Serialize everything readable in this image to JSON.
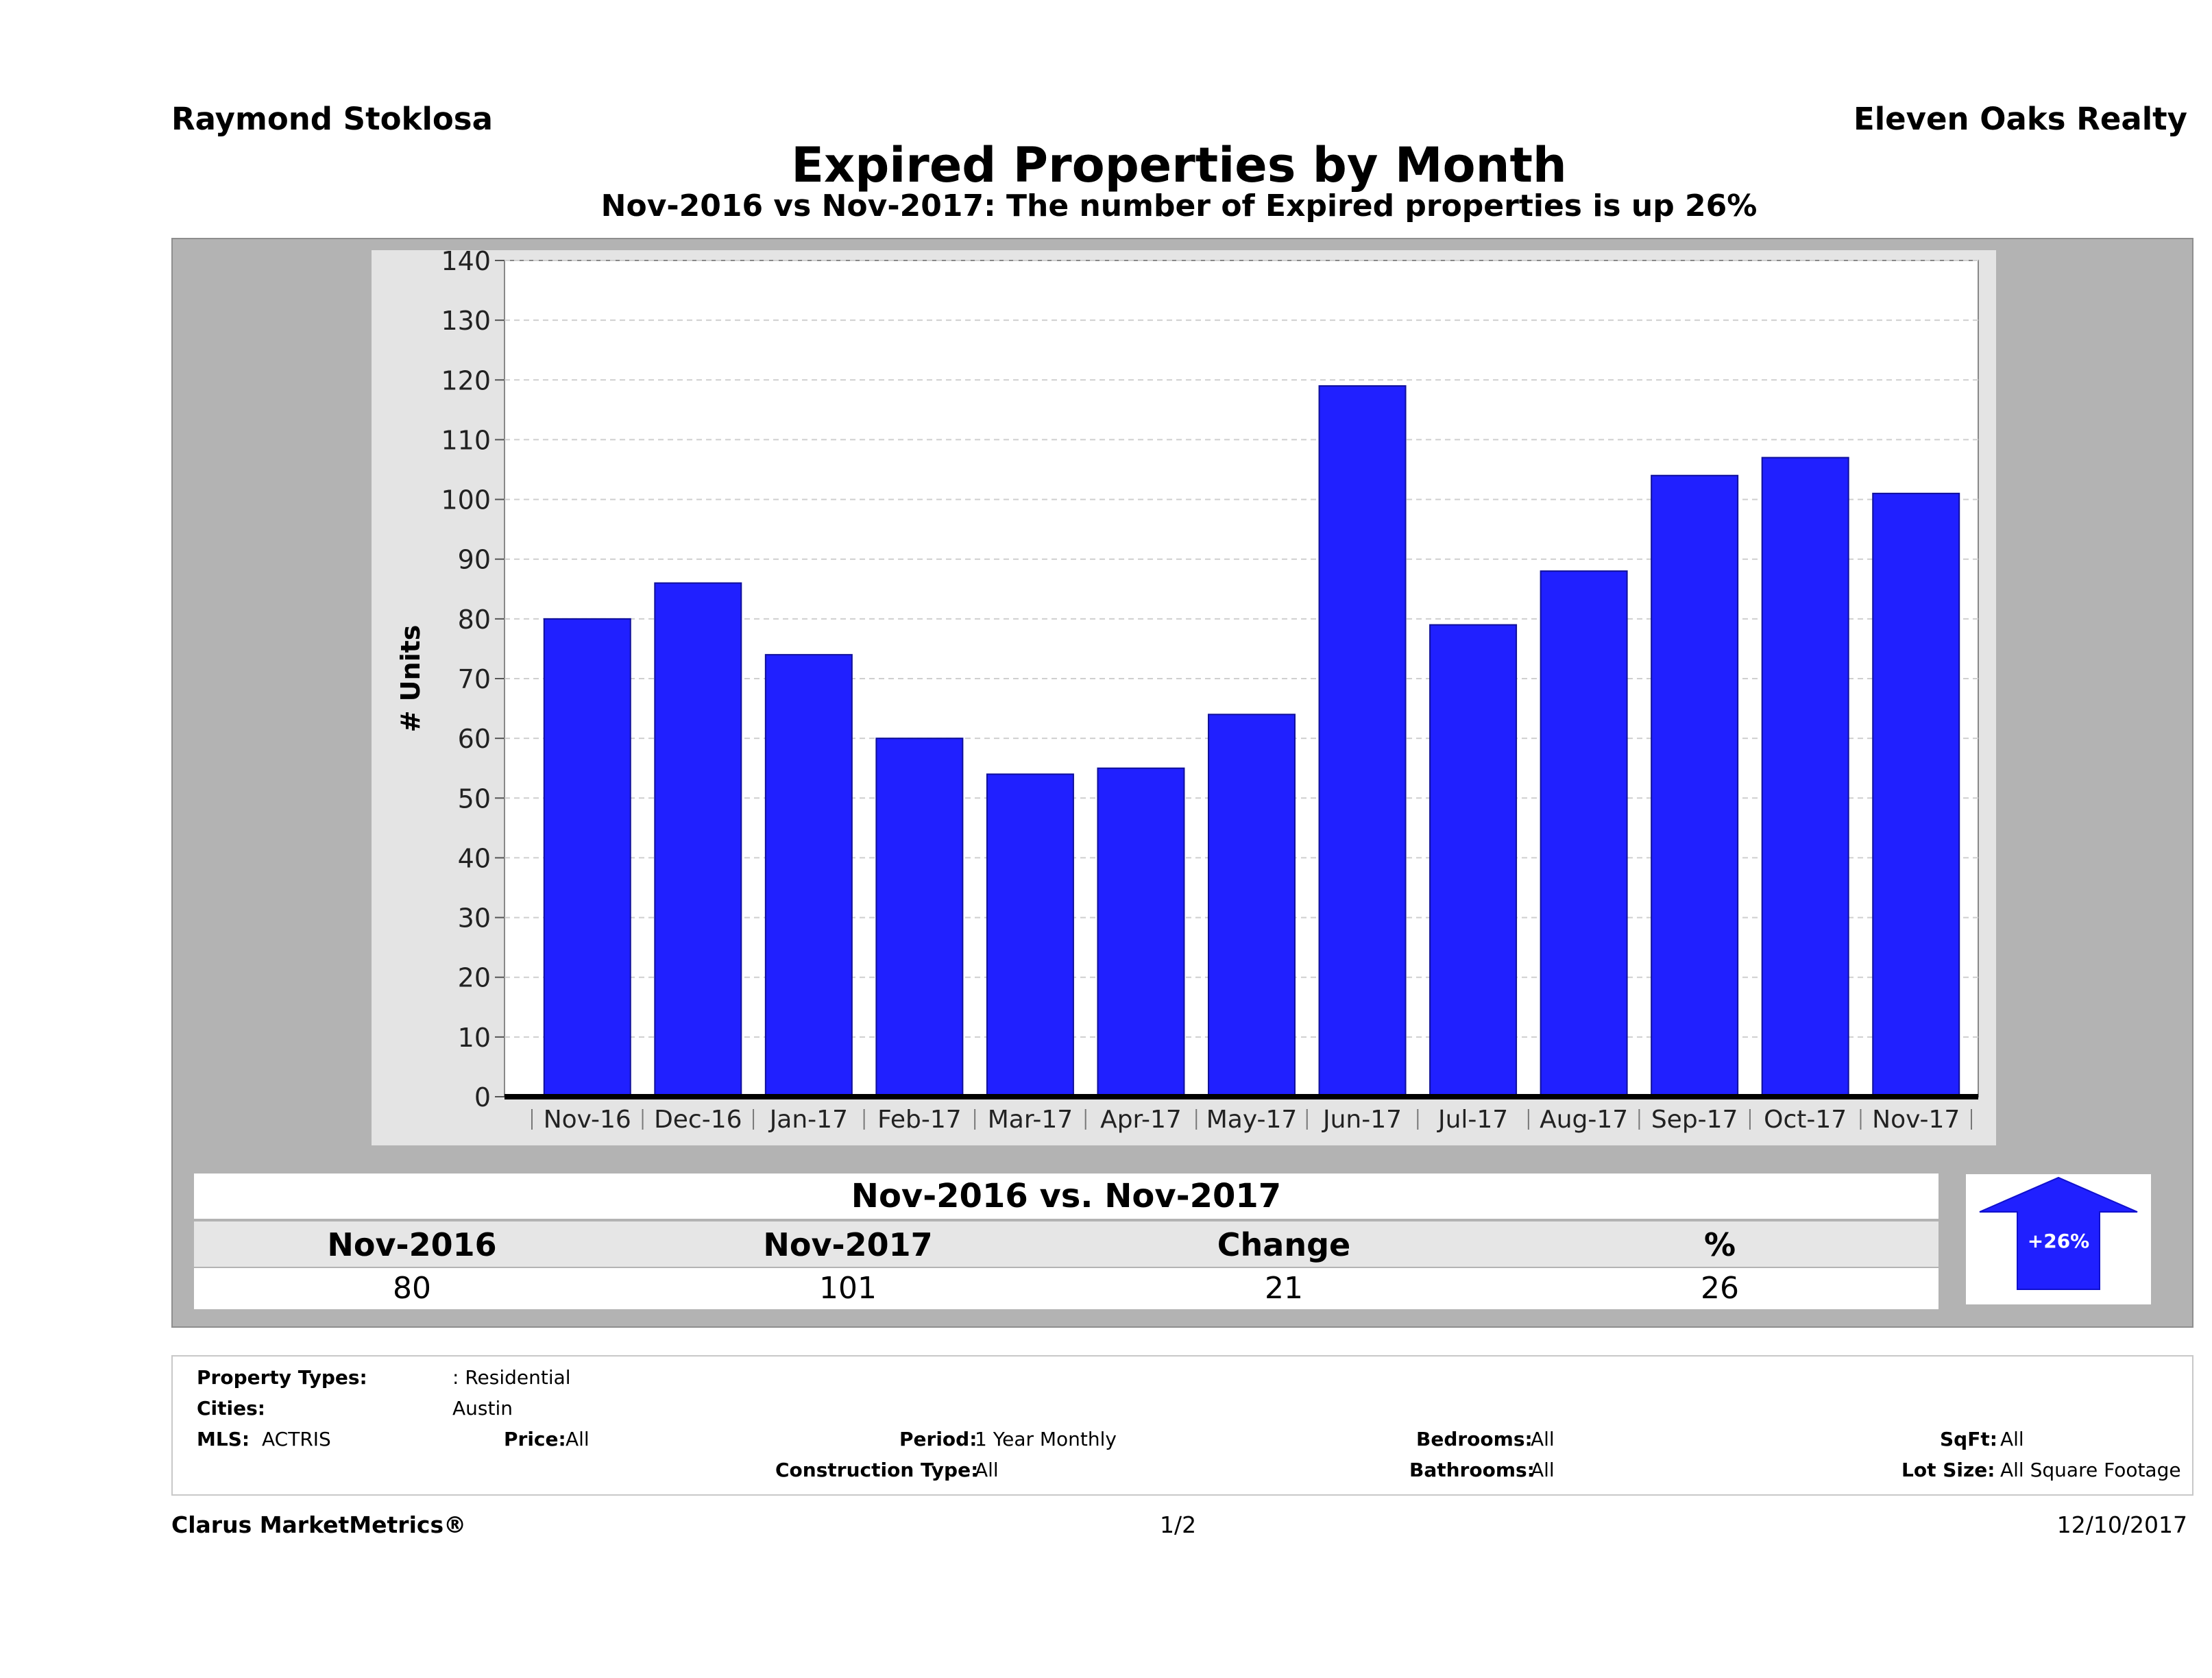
{
  "header": {
    "agent": "Raymond Stoklosa",
    "company": "Eleven Oaks Realty",
    "title": "Expired Properties by Month",
    "subtitle": "Nov-2016 vs Nov-2017: The number of Expired  properties is up 26%"
  },
  "chart_data": {
    "type": "bar",
    "categories": [
      "Nov-16",
      "Dec-16",
      "Jan-17",
      "Feb-17",
      "Mar-17",
      "Apr-17",
      "May-17",
      "Jun-17",
      "Jul-17",
      "Aug-17",
      "Sep-17",
      "Oct-17",
      "Nov-17"
    ],
    "values": [
      80,
      86,
      74,
      60,
      54,
      55,
      64,
      119,
      79,
      88,
      104,
      107,
      101
    ],
    "ylabel": "# Units",
    "ylim": [
      0,
      140
    ],
    "yticks": [
      0,
      10,
      20,
      30,
      40,
      50,
      60,
      70,
      80,
      90,
      100,
      110,
      120,
      130,
      140
    ],
    "grid": true,
    "bar_color": "#2020ff"
  },
  "comparison": {
    "title": "Nov-2016 vs. Nov-2017",
    "headers": [
      "Nov-2016",
      "Nov-2017",
      "Change",
      "%"
    ],
    "values": [
      "80",
      "101",
      "21",
      "26"
    ],
    "badge": "+26%",
    "badge_color": "#2020ff"
  },
  "filters": {
    "property_types_label": "Property Types:",
    "property_types_value": ": Residential",
    "cities_label": "Cities:",
    "cities_value": "Austin",
    "mls_label": "MLS:",
    "mls_value": "ACTRIS",
    "price_label": "Price:",
    "price_value": "All",
    "period_label": "Period:",
    "period_value": "1 Year Monthly",
    "construction_label": "Construction Type:",
    "construction_value": "All",
    "bedrooms_label": "Bedrooms:",
    "bedrooms_value": "All",
    "bathrooms_label": "Bathrooms:",
    "bathrooms_value": "All",
    "sqft_label": "SqFt:",
    "sqft_value": "All",
    "lot_label": "Lot Size:",
    "lot_value": "All Square Footage"
  },
  "footer": {
    "brand": "Clarus MarketMetrics®",
    "page": "1/2",
    "date": "12/10/2017"
  }
}
